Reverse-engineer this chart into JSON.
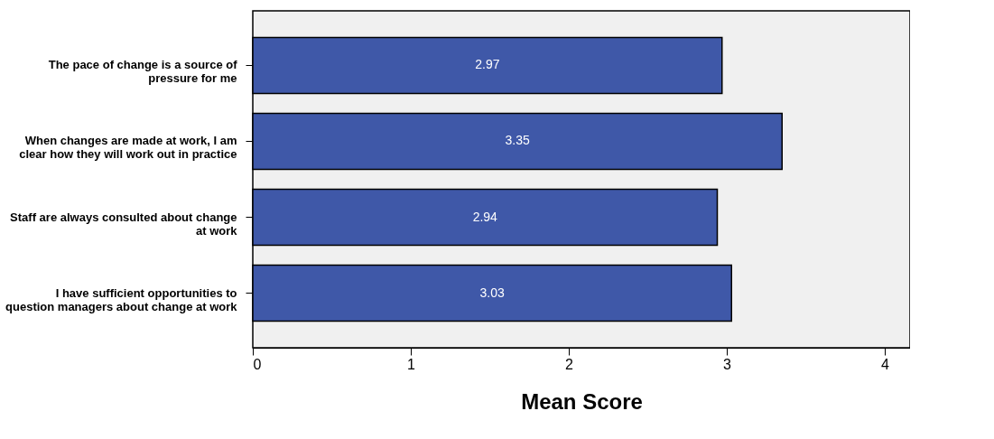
{
  "chart_data": {
    "type": "bar",
    "orientation": "horizontal",
    "xlabel": "Mean Score",
    "categories": [
      "The pace of change is a source of pressure for me",
      "When changes are made at work, I am clear how they will work out in practice",
      "Staff are always consulted about change at work",
      "I have sufficient opportunities to question managers about change at work"
    ],
    "values": [
      2.97,
      3.35,
      2.94,
      3.03
    ],
    "color": "#3f58a8",
    "xlim": [
      0,
      4.16
    ],
    "xticks": [
      0,
      1,
      2,
      3,
      4
    ],
    "grid": false,
    "data_labels": true
  }
}
